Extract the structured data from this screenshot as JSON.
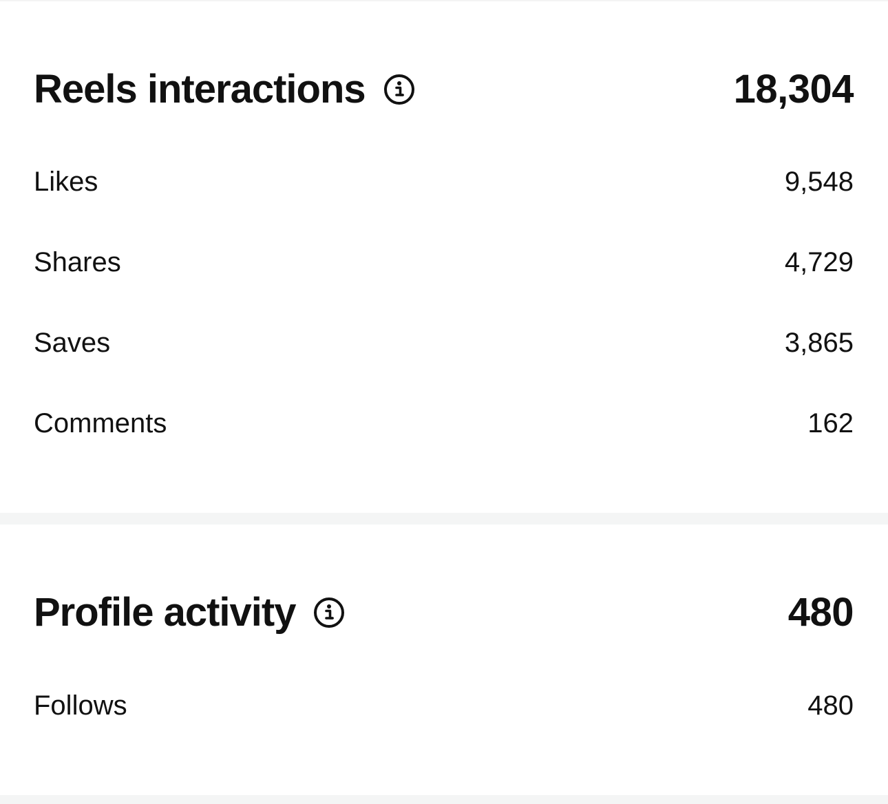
{
  "sections": [
    {
      "title": "Reels interactions",
      "info_icon": "info-icon",
      "total": "18,304",
      "metrics": [
        {
          "label": "Likes",
          "value": "9,548"
        },
        {
          "label": "Shares",
          "value": "4,729"
        },
        {
          "label": "Saves",
          "value": "3,865"
        },
        {
          "label": "Comments",
          "value": "162"
        }
      ]
    },
    {
      "title": "Profile activity",
      "info_icon": "info-icon",
      "total": "480",
      "metrics": [
        {
          "label": "Follows",
          "value": "480"
        }
      ]
    }
  ],
  "colors": {
    "text": "#111111",
    "background": "#ffffff",
    "divider": "#f4f5f5"
  }
}
